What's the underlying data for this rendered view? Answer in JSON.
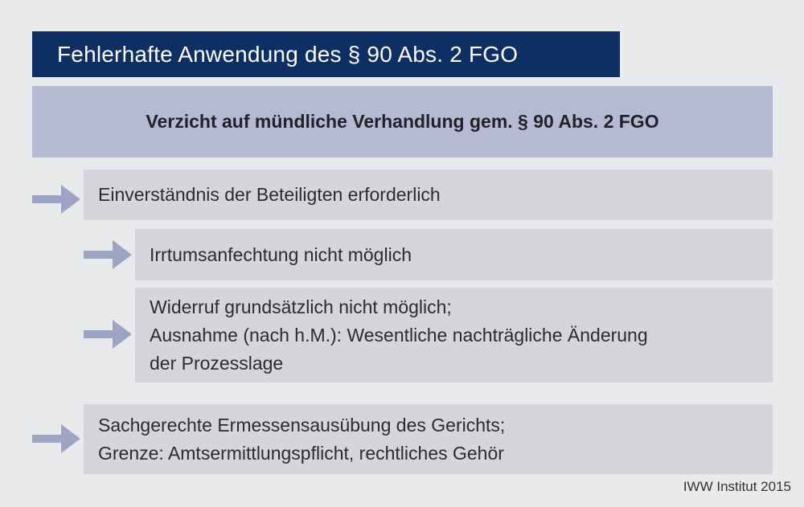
{
  "title": "Fehlerhafte Anwendung des § 90 Abs. 2 FGO",
  "subtitle": "Verzicht auf mündliche Verhandlung gem. § 90 Abs. 2 FGO",
  "items": [
    {
      "lines": [
        "Einverständnis der Beteiligten erforderlich"
      ]
    },
    {
      "lines": [
        "Irrtumsanfechtung nicht möglich"
      ]
    },
    {
      "lines": [
        "Widerruf grundsätzlich nicht möglich;",
        "Ausnahme (nach h.M.): Wesentliche nachträgliche Änderung",
        "der Prozesslage"
      ]
    },
    {
      "lines": [
        "Sachgerechte Ermessensausübung des Gerichts;",
        "Grenze: Amtsermittlungspflicht, rechtliches Gehör"
      ]
    }
  ],
  "footer": "IWW Institut 2015",
  "colors": {
    "title_bg": "#0e2f63",
    "subtitle_bg": "#b5b9d2",
    "box_bg": "#d4d6db",
    "arrow": "#9ea4c4",
    "page_bg": "#e9eaec"
  },
  "icons": {
    "arrow": "right-arrow-icon"
  }
}
